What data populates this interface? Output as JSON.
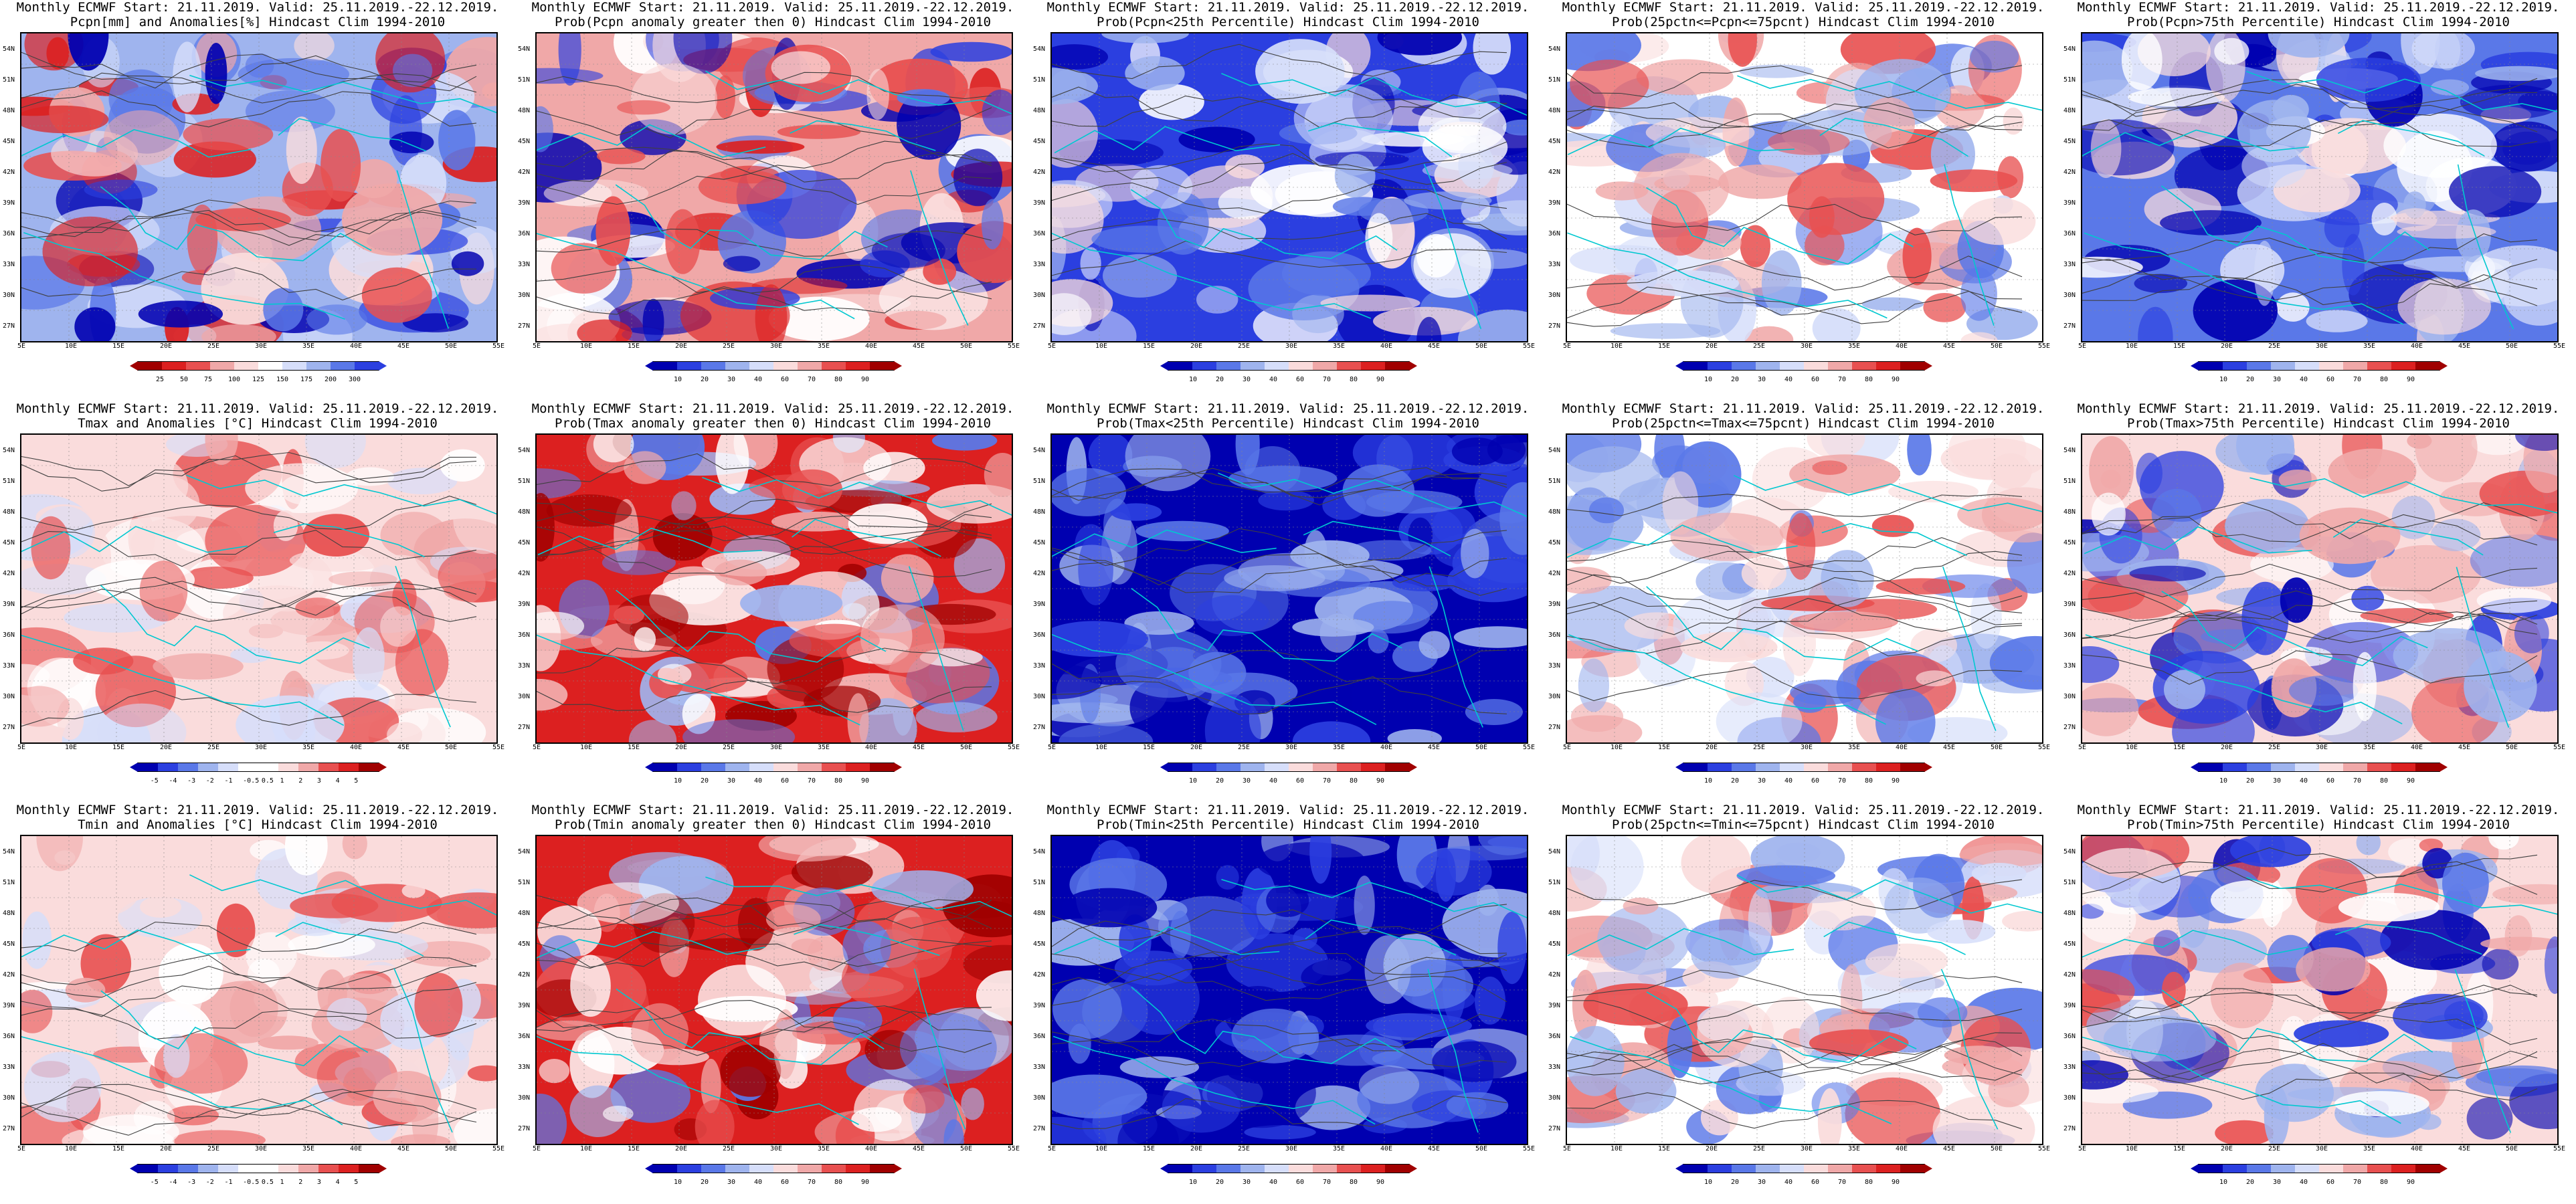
{
  "colors": {
    "blue_dark": "#0000b0",
    "blue": "#2b3fe0",
    "blue_mid": "#5a78e8",
    "blue_light": "#9fb4ee",
    "blue_pale": "#d6defa",
    "red_pale": "#fadcdc",
    "red_light": "#f0a8a8",
    "red": "#e85050",
    "red_mid": "#dc2020",
    "red_dark": "#a00000",
    "coast": "#00c8d0",
    "contour": "#404040"
  },
  "lat_labels": [
    "54N",
    "51N",
    "48N",
    "45N",
    "42N",
    "39N",
    "36N",
    "33N",
    "30N",
    "27N"
  ],
  "lon_labels": [
    "5E",
    "10E",
    "15E",
    "20E",
    "25E",
    "30E",
    "35E",
    "40E",
    "45E",
    "50E",
    "55E"
  ],
  "panels": [
    {
      "line1": "Monthly ECMWF Start: 21.11.2019. Valid: 25.11.2019.-22.12.2019.",
      "line2": "Pcpn[mm] and Anomalies[%] Hindcast Clim 1994-2010",
      "scheme": "pcpn_anom",
      "ticks": [
        "25",
        "50",
        "75",
        "100",
        "125",
        "150",
        "175",
        "200",
        "300"
      ]
    },
    {
      "line1": "Monthly ECMWF Start: 21.11.2019. Valid: 25.11.2019.-22.12.2019.",
      "line2": "Prob(Pcpn anomaly greater then 0) Hindcast Clim 1994-2010",
      "scheme": "prob_red",
      "ticks": [
        "10",
        "20",
        "30",
        "40",
        "60",
        "70",
        "80",
        "90"
      ]
    },
    {
      "line1": "Monthly ECMWF Start: 21.11.2019. Valid: 25.11.2019.-22.12.2019.",
      "line2": "Prob(Pcpn<25th Percentile) Hindcast Clim 1994-2010",
      "scheme": "prob_blue",
      "ticks": [
        "10",
        "20",
        "30",
        "40",
        "60",
        "70",
        "80",
        "90"
      ]
    },
    {
      "line1": "Monthly ECMWF Start: 21.11.2019. Valid: 25.11.2019.-22.12.2019.",
      "line2": "Prob(25pctn<=Pcpn<=75pcnt) Hindcast Clim 1994-2010",
      "scheme": "prob_mix",
      "ticks": [
        "10",
        "20",
        "30",
        "40",
        "60",
        "70",
        "80",
        "90"
      ]
    },
    {
      "line1": "Monthly ECMWF Start: 21.11.2019. Valid: 25.11.2019.-22.12.2019.",
      "line2": "Prob(Pcpn>75th Percentile) Hindcast Clim 1994-2010",
      "scheme": "prob_blue2",
      "ticks": [
        "10",
        "20",
        "30",
        "40",
        "60",
        "70",
        "80",
        "90"
      ]
    },
    {
      "line1": "Monthly ECMWF Start: 21.11.2019. Valid: 25.11.2019.-22.12.2019.",
      "line2": "Tmax and Anomalies [°C] Hindcast Clim 1994-2010",
      "scheme": "temp_anom",
      "ticks": [
        "-5",
        "-4",
        "-3",
        "-2",
        "-1",
        "-0.5",
        "0.5",
        "1",
        "2",
        "3",
        "4",
        "5"
      ]
    },
    {
      "line1": "Monthly ECMWF Start: 21.11.2019. Valid: 25.11.2019.-22.12.2019.",
      "line2": "Prob(Tmax anomaly greater then 0) Hindcast Clim 1994-2010",
      "scheme": "prob_hot",
      "ticks": [
        "10",
        "20",
        "30",
        "40",
        "60",
        "70",
        "80",
        "90"
      ]
    },
    {
      "line1": "Monthly ECMWF Start: 21.11.2019. Valid: 25.11.2019.-22.12.2019.",
      "line2": "Prob(Tmax<25th Percentile) Hindcast Clim 1994-2010",
      "scheme": "prob_cold",
      "ticks": [
        "10",
        "20",
        "30",
        "40",
        "60",
        "70",
        "80",
        "90"
      ]
    },
    {
      "line1": "Monthly ECMWF Start: 21.11.2019. Valid: 25.11.2019.-22.12.2019.",
      "line2": "Prob(25pctn<=Tmax<=75pcnt) Hindcast Clim 1994-2010",
      "scheme": "prob_mix",
      "ticks": [
        "10",
        "20",
        "30",
        "40",
        "60",
        "70",
        "80",
        "90"
      ]
    },
    {
      "line1": "Monthly ECMWF Start: 21.11.2019. Valid: 25.11.2019.-22.12.2019.",
      "line2": "Prob(Tmax>75th Percentile) Hindcast Clim 1994-2010",
      "scheme": "prob_mix2",
      "ticks": [
        "10",
        "20",
        "30",
        "40",
        "60",
        "70",
        "80",
        "90"
      ]
    },
    {
      "line1": "Monthly ECMWF Start: 21.11.2019. Valid: 25.11.2019.-22.12.2019.",
      "line2": "Tmin and Anomalies [°C] Hindcast Clim 1994-2010",
      "scheme": "temp_anom",
      "ticks": [
        "-5",
        "-4",
        "-3",
        "-2",
        "-1",
        "-0.5",
        "0.5",
        "1",
        "2",
        "3",
        "4",
        "5"
      ]
    },
    {
      "line1": "Monthly ECMWF Start: 21.11.2019. Valid: 25.11.2019.-22.12.2019.",
      "line2": "Prob(Tmin anomaly greater then 0) Hindcast Clim 1994-2010",
      "scheme": "prob_hot",
      "ticks": [
        "10",
        "20",
        "30",
        "40",
        "60",
        "70",
        "80",
        "90"
      ]
    },
    {
      "line1": "Monthly ECMWF Start: 21.11.2019. Valid: 25.11.2019.-22.12.2019.",
      "line2": "Prob(Tmin<25th Percentile) Hindcast Clim 1994-2010",
      "scheme": "prob_cold",
      "ticks": [
        "10",
        "20",
        "30",
        "40",
        "60",
        "70",
        "80",
        "90"
      ]
    },
    {
      "line1": "Monthly ECMWF Start: 21.11.2019. Valid: 25.11.2019.-22.12.2019.",
      "line2": "Prob(25pctn<=Tmin<=75pcnt) Hindcast Clim 1994-2010",
      "scheme": "prob_mix",
      "ticks": [
        "10",
        "20",
        "30",
        "40",
        "60",
        "70",
        "80",
        "90"
      ]
    },
    {
      "line1": "Monthly ECMWF Start: 21.11.2019. Valid: 25.11.2019.-22.12.2019.",
      "line2": "Prob(Tmin>75th Percentile) Hindcast Clim 1994-2010",
      "scheme": "prob_mix2",
      "ticks": [
        "10",
        "20",
        "30",
        "40",
        "60",
        "70",
        "80",
        "90"
      ]
    }
  ]
}
